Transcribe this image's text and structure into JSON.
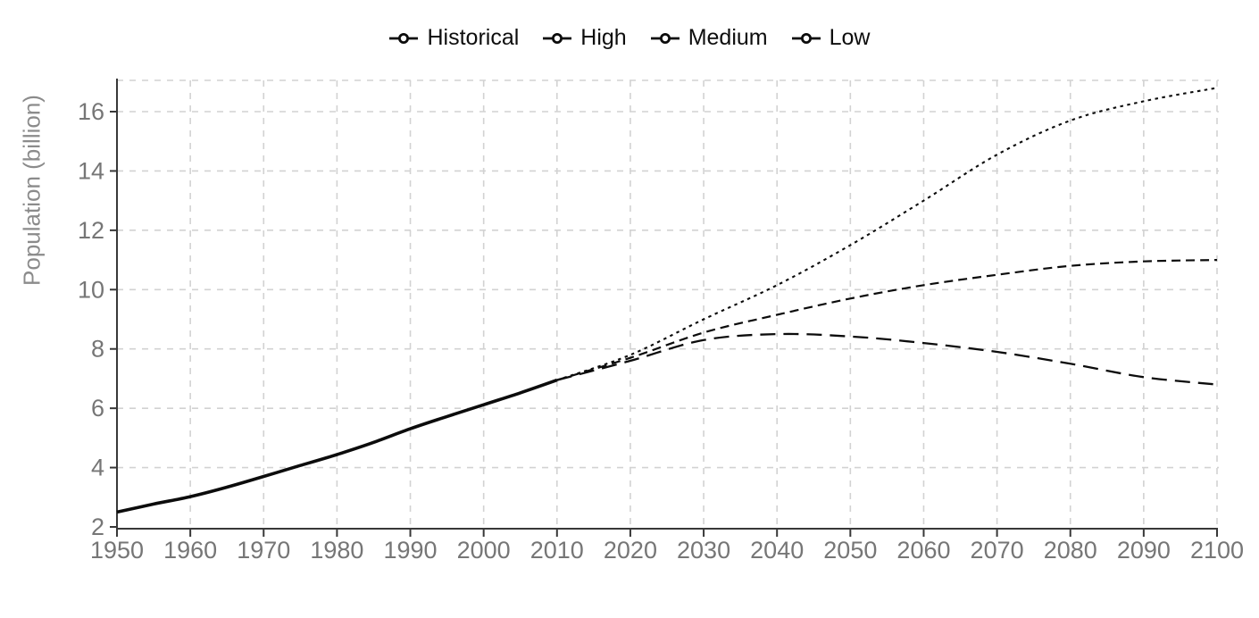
{
  "figure": {
    "colors": {
      "series_stroke": "#0c0c0c",
      "grid": "#d2d2d2",
      "axis": "#383838",
      "tick_label": "#767676",
      "y_axis_title": "#8b8b8b",
      "legend_text": "#0d0d0d",
      "background": "#ffffff"
    }
  },
  "legend": {
    "marker": "line-open-circle",
    "items": [
      "Historical",
      "High",
      "Medium",
      "Low"
    ]
  },
  "chart_data": {
    "type": "line",
    "title": "",
    "xlabel": "",
    "ylabel": "Population (billion)",
    "xlim": [
      1950,
      2100
    ],
    "ylim": [
      2,
      17
    ],
    "x_ticks": [
      1950,
      1960,
      1970,
      1980,
      1990,
      2000,
      2010,
      2020,
      2030,
      2040,
      2050,
      2060,
      2070,
      2080,
      2090,
      2100
    ],
    "y_ticks": [
      2,
      4,
      6,
      8,
      10,
      12,
      14,
      16
    ],
    "grid": "dashed, both axes, light gray",
    "legend_position": "top-center",
    "series": [
      {
        "name": "Historical",
        "style": "solid",
        "x": [
          1950,
          1955,
          1960,
          1965,
          1970,
          1975,
          1980,
          1985,
          1990,
          1995,
          2000,
          2005,
          2010
        ],
        "values": [
          2.5,
          2.77,
          3.02,
          3.34,
          3.7,
          4.07,
          4.44,
          4.85,
          5.31,
          5.72,
          6.12,
          6.52,
          6.95
        ]
      },
      {
        "name": "High",
        "style": "dotted",
        "x": [
          2010,
          2020,
          2030,
          2040,
          2050,
          2060,
          2070,
          2080,
          2090,
          2100
        ],
        "values": [
          6.95,
          7.8,
          9.0,
          10.15,
          11.5,
          13.0,
          14.55,
          15.7,
          16.35,
          16.8
        ]
      },
      {
        "name": "Medium",
        "style": "dashed",
        "x": [
          2010,
          2020,
          2030,
          2040,
          2050,
          2060,
          2070,
          2080,
          2090,
          2100
        ],
        "values": [
          6.95,
          7.7,
          8.55,
          9.15,
          9.7,
          10.15,
          10.5,
          10.8,
          10.95,
          11.0
        ]
      },
      {
        "name": "Low",
        "style": "longdash",
        "x": [
          2010,
          2020,
          2030,
          2040,
          2050,
          2060,
          2070,
          2080,
          2090,
          2100
        ],
        "values": [
          6.95,
          7.6,
          8.3,
          8.5,
          8.42,
          8.2,
          7.9,
          7.5,
          7.05,
          6.8
        ]
      }
    ]
  }
}
